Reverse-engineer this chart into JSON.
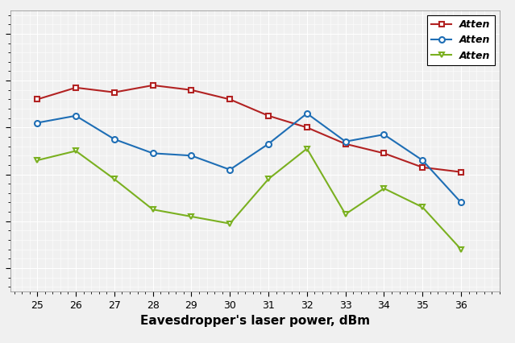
{
  "x": [
    25,
    26,
    27,
    28,
    29,
    30,
    31,
    32,
    33,
    34,
    35,
    36
  ],
  "red_y": [
    7.6,
    7.85,
    7.75,
    7.9,
    7.8,
    7.6,
    7.25,
    7.0,
    6.65,
    6.45,
    6.15,
    6.05
  ],
  "blue_y": [
    7.1,
    7.25,
    6.75,
    6.45,
    6.4,
    6.1,
    6.65,
    7.3,
    6.7,
    6.85,
    6.3,
    5.4
  ],
  "green_y": [
    6.3,
    6.5,
    5.9,
    5.25,
    5.1,
    4.95,
    5.9,
    6.55,
    5.15,
    5.7,
    5.3,
    4.4
  ],
  "red_color": "#b22222",
  "blue_color": "#1e6eb5",
  "green_color": "#7ab020",
  "bg_color": "#f0f0f0",
  "grid_color": "#ffffff",
  "xlabel": "Eavesdropper's laser power, dBm",
  "legend": [
    "Atten",
    "Atten",
    "Atten"
  ],
  "xticks": [
    25,
    26,
    27,
    28,
    29,
    30,
    31,
    32,
    33,
    34,
    35,
    36
  ],
  "xlim": [
    24.3,
    37.0
  ],
  "ylim": [
    3.5,
    9.5
  ],
  "ytick_spacing": 1.0,
  "figwidth": 6.39,
  "figheight": 4.26,
  "dpi": 100
}
